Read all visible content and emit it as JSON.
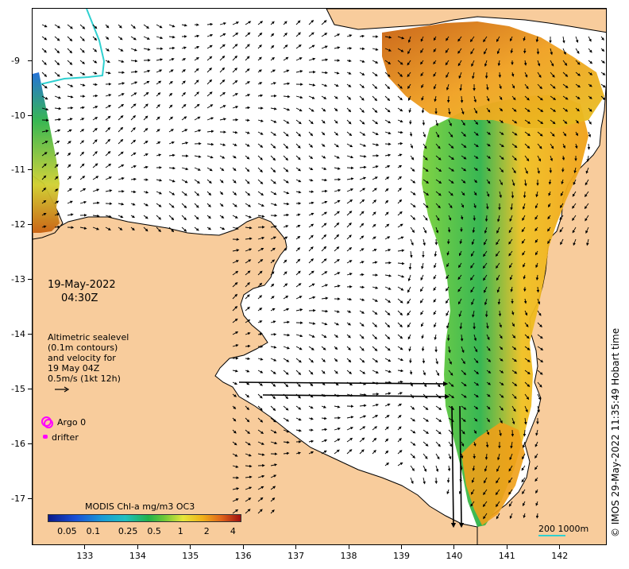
{
  "map": {
    "lon_ticks": [
      "133",
      "134",
      "135",
      "136",
      "137",
      "138",
      "139",
      "140",
      "141",
      "142"
    ],
    "lat_ticks": [
      "-9",
      "-10",
      "-11",
      "-12",
      "-13",
      "-14",
      "-15",
      "-16",
      "-17"
    ],
    "lon_range": [
      132.0,
      142.9
    ],
    "lat_range": [
      -17.85,
      -8.05
    ],
    "colors": {
      "land": "#f8cc9c",
      "water": "#ffffff",
      "coast": "#000000",
      "track": "#2fd0d0",
      "argo": "#ff00ff",
      "arrow": "#000000"
    }
  },
  "date": {
    "line1": "19-May-2022",
    "line2": "04:30Z"
  },
  "velocity_note": {
    "line1": "Altimetric sealevel",
    "line2": "(0.1m contours)",
    "line3": "and velocity for",
    "line4": "19 May 04Z",
    "line5": "0.5m/s (1kt 12h)"
  },
  "legend": {
    "argo_label": "Argo 0",
    "drifter_label": "drifter"
  },
  "colorbar": {
    "title": "MODIS Chl-a mg/m3 OC3",
    "labels": [
      "0.05",
      "0.1",
      "0.25",
      "0.5",
      "1",
      "2",
      "4"
    ],
    "log_values": [
      0.05,
      0.1,
      0.25,
      0.5,
      1,
      2,
      4
    ],
    "range": [
      0.03,
      5.0
    ],
    "scale": "log",
    "colors": [
      "#0b1a8a",
      "#1a4fd6",
      "#1a9bd6",
      "#20c0c0",
      "#21b24a",
      "#6cc838",
      "#e6e63a",
      "#f0b21a",
      "#e0641a",
      "#a01010"
    ]
  },
  "scale_bar": {
    "label": "200  1000m"
  },
  "credit": "© IMOS 29-May-2022 11:35:49 Hobart time"
}
